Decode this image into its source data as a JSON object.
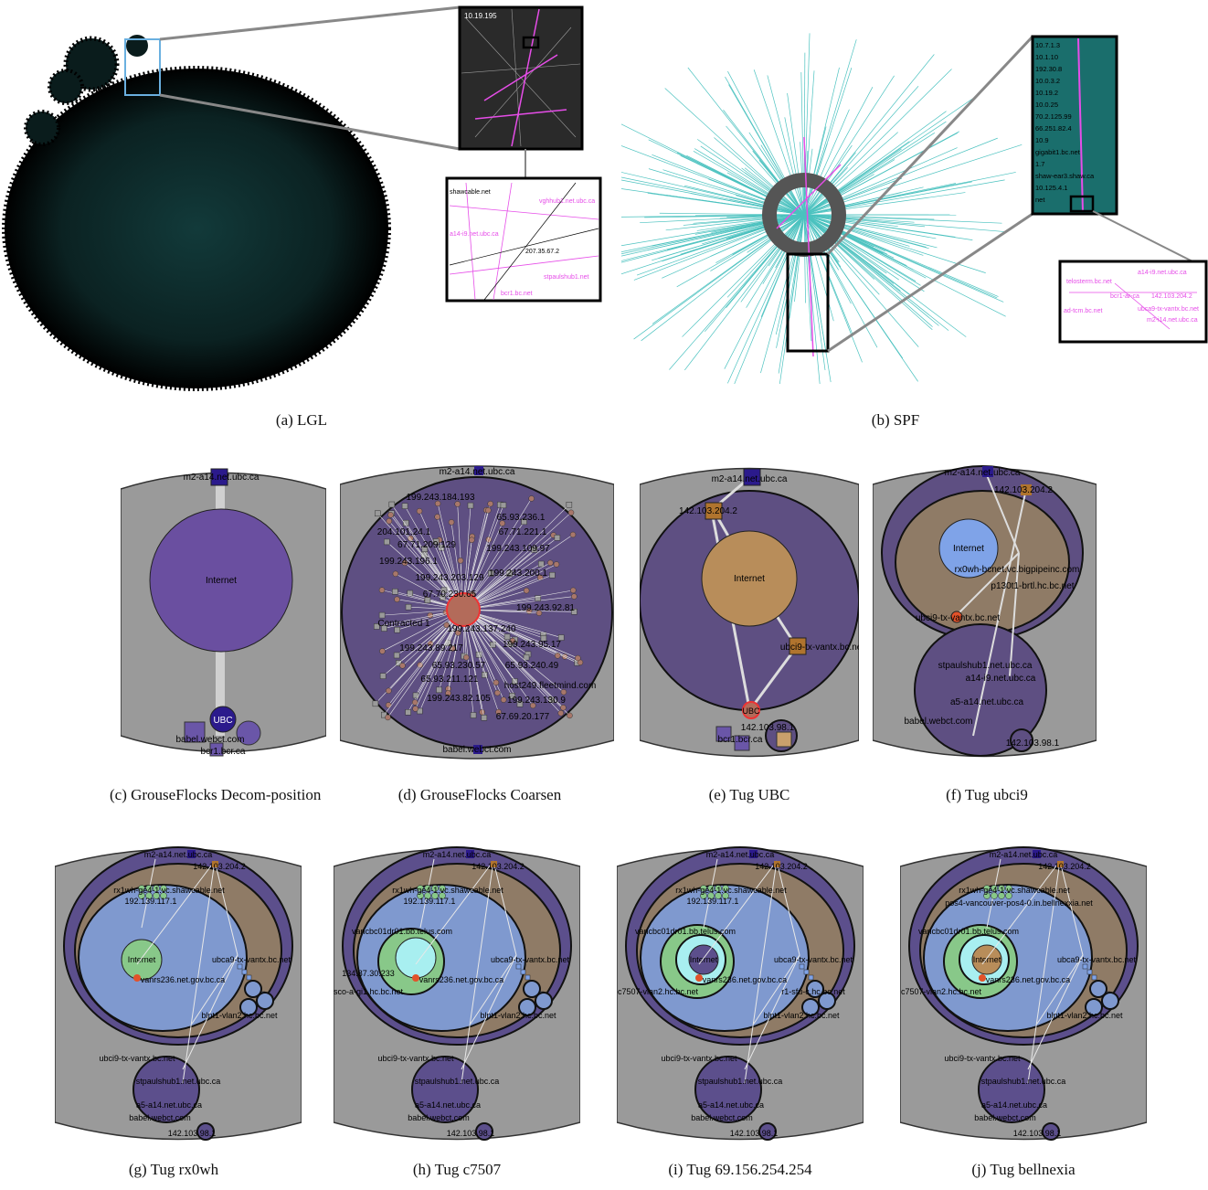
{
  "captions": {
    "a": "(a)  LGL",
    "b": "(b)  SPF",
    "c": "(c)  GrouseFlocks Decom-position",
    "d": "(d)  GrouseFlocks Coarsen",
    "e": "(e)  Tug UBC",
    "f": "(f)  Tug ubci9",
    "g": "(g)  Tug rx0wh",
    "h": "(h)  Tug c7507",
    "i": "(i)  Tug 69.156.254.254",
    "j": "(j)  Tug bellnexia"
  },
  "lgl": {
    "zoom1_label": "10.19.195",
    "zoom2_labels": [
      "shawcable.net",
      "vghhub1.net.ubc.ca",
      "a14-i9.net.ubc.ca",
      "207.35.67.2",
      "stpaulshub1.net",
      "bcr1.bc.net"
    ]
  },
  "spf": {
    "zoom1_labels": [
      "10.7.1.3",
      "10.1.10",
      "192.30.8",
      "10.0.3.2",
      "10.19.2",
      "10.0.25",
      "70.2.125.99",
      "66.251.82.4",
      "10.9",
      "gigabit1.bc.net",
      "1.7",
      "shaw-ear3.shaw.ca",
      "10.125.4.1",
      "net"
    ],
    "zoom2_labels": [
      "telosterm.bc.net",
      "a14-i9.net.ubc.ca",
      "bcr1-ar-ca",
      "142.103.204.2",
      "ubca9-tx-vantx.bc.net",
      "ad-tcm.bc.net",
      "m2-i14.net.ubc.ca"
    ]
  },
  "c": {
    "top": "m2-a14.net.ubc.ca",
    "internet": "Internet",
    "ubc": "UBC",
    "babel": "babel.webct.com",
    "bcr1": "bcr1.bcr.ca"
  },
  "d": {
    "top": "m2-a14.net.ubc.ca",
    "labels": [
      "199.243.184.193",
      "65.93.236.1",
      "204.101.24.1",
      "67.71.221.1",
      "67.71.209.129",
      "199.243.109.97",
      "199.243.196.1",
      "199.243.200.1",
      "199.243.203.129",
      "67.70.230.65",
      "199.243.92.81",
      "Contracted 1",
      "199.243.137.240",
      "199.243.95.17",
      "199.243.89.217",
      "65.93.230.57",
      "65.93.240.49",
      "65.93.211.121",
      "host249.fleetmind.com",
      "199.243.82.105",
      "199.243.130.9",
      "67.69.20.177"
    ],
    "bottom": "babel.webct.com"
  },
  "e": {
    "top": "m2-a14.net.ubc.ca",
    "node1": "142.103.204.2",
    "internet": "Internet",
    "ubca9": "ubci9-tx-vantx.bc.net",
    "ubc": "UBC",
    "n2": "142.103.98.1",
    "bcr1": "bcr1.bcr.ca"
  },
  "f": {
    "top": "m2-a14.net.ubc.ca",
    "n1": "142.103.204.2",
    "internet": "Internet",
    "rx0wh": "rx0wh-bcnet.vc.bigpipeinc.com",
    "p130": "p130t1-brtl.hc.bc.net",
    "ubci9": "ubci9-tx-vantx.bc.net",
    "stpauls": "stpaulshub1.net.ubc.ca",
    "a14i9": "a14-i9.net.ubc.ca",
    "a5": "a5-a14.net.ubc.ca",
    "babel": "babel.webct.com",
    "n2": "142.103.98.1"
  },
  "g": {
    "top": "m2-a14.net.ubc.ca",
    "n1": "142.103.204.2",
    "rx": "rx1wh-ge4-1.vc.shawcable.net",
    "ip": "192.139.117.1",
    "internet": "Internet",
    "ubca9": "ubca9-tx-vantx.bc.net",
    "vanrs": "vanrs236.net.gov.bc.ca",
    "blnt": "blnt1-vlan2.hc.bc.net",
    "ubci9": "ubci9-tx-vantx.bc.net",
    "stpauls": "stpaulshub1.net.ubc.ca",
    "a5": "a5-a14.net.ubc.ca",
    "babel": "babel.webct.com",
    "n2": "142.103.98.1"
  },
  "h": {
    "top": "m2-a14.net.ubc.ca",
    "n1": "142.103.204.2",
    "rx": "rx1wh-ge4-1.vc.shawcable.net",
    "ip": "192.139.117.1",
    "vanc": "vancbc01dr01.bb.telus.com",
    "ubca9": "ubca9-tx-vantx.bc.net",
    "n34": "134.87.30.233",
    "vanrs": "vanrs236.net.gov.bc.ca",
    "sco": "sco-a-gi1.hc.bc.net",
    "blnt": "blnt1-vlan2.hc.bc.net",
    "ubci9": "ubci9-tx-vantx.bc.net",
    "stpauls": "stpaulshub1.net.ubc.ca",
    "a5": "a5-a14.net.ubc.ca",
    "babel": "babel.webct.com",
    "n2": "142.103.98.1"
  },
  "i": {
    "top": "m2-a14.net.ubc.ca",
    "n1": "142.103.204.2",
    "rx": "rx1wh-ge4-1.vc.shawcable.net",
    "ip": "192.139.117.1",
    "vanc": "vancbc01dr01.bb.telus.com",
    "internet": "Internet",
    "ubca9": "ubca9-tx-vantx.bc.net",
    "vanrs": "vanrs236.net.gov.bc.ca",
    "c7507": "c7507-vlan2.hc.bc.net",
    "sfu": "r1-sfu-c.hc.bc.net",
    "blnt": "blnt1-vlan2.hc.bc.net",
    "ubci9": "ubci9-tx-vantx.bc.net",
    "stpauls": "stpaulshub1.net.ubc.ca",
    "a5": "a5-a14.net.ubc.ca",
    "babel": "babel.webct.com",
    "n2": "142.103.98.1"
  },
  "j": {
    "top": "m2-a14.net.ubc.ca",
    "n1": "142.103.204.2",
    "rx": "rx1wh-ge4-1.vc.shawcable.net",
    "pos": "pos4-vancouver-pos4-0.in.bellnexxia.net",
    "vanc": "vancbc01dr01.bb.telus.com",
    "internet": "Internet",
    "ubca9": "ubca9-tx-vantx.bc.net",
    "vanrs": "vanrs236.net.gov.bc.ca",
    "c7507": "c7507-vlan2.hc.bc.net",
    "blnt": "blnt1-vlan2.hc.bc.net",
    "ubci9": "ubci9-tx-vantx.bc.net",
    "stpauls": "stpaulshub1.net.ubc.ca",
    "a5": "a5-a14.net.ubc.ca",
    "babel": "babel.webct.com",
    "n2": "142.103.98.1"
  },
  "colors": {
    "gray": "#9a9a9a",
    "purple": "#5c4f8c",
    "tan": "#8f7b66",
    "blue": "#7f99cf",
    "green": "#88c889",
    "cyan": "#a8eff0",
    "orange": "#b88d5a",
    "teal": "#1fb3b0",
    "magenta": "#e64de8"
  }
}
